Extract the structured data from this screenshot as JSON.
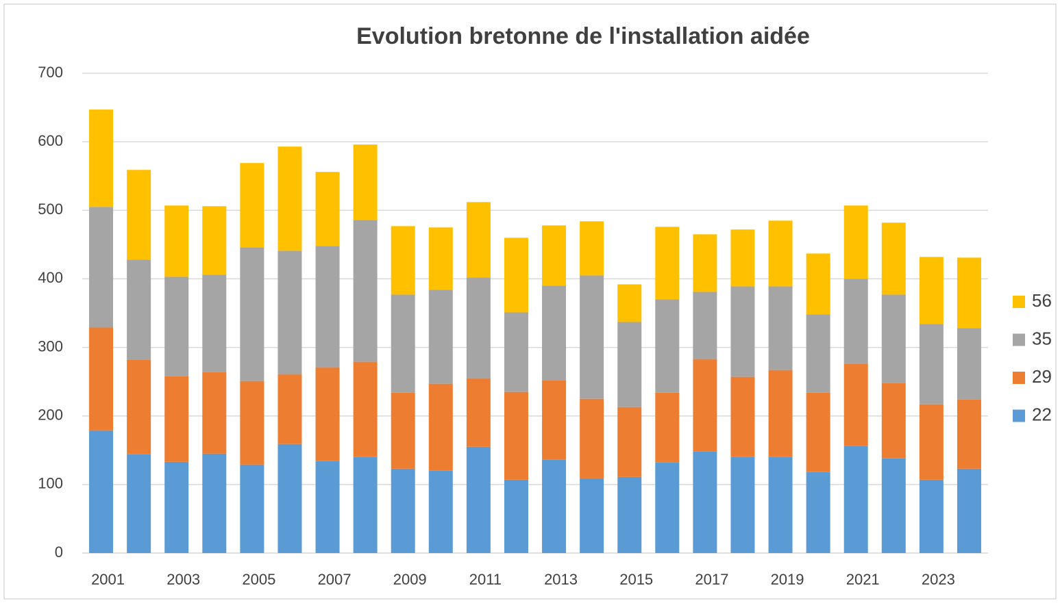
{
  "chart_data": {
    "type": "stacked_bar",
    "title": "Evolution bretonne de l'installation aidée",
    "categories": [
      "2001",
      null,
      "2003",
      null,
      "2005",
      null,
      "2007",
      null,
      "2009",
      null,
      "2011",
      null,
      "2013",
      null,
      "2015",
      null,
      "2017",
      null,
      "2019",
      null,
      "2021",
      null,
      "2023",
      null
    ],
    "series": [
      {
        "name": "22",
        "color": "#5b9bd5",
        "values": [
          179,
          144,
          133,
          145,
          129,
          159,
          134,
          140,
          123,
          120,
          155,
          107,
          136,
          109,
          111,
          132,
          148,
          140,
          140,
          118,
          156,
          138,
          107,
          123
        ]
      },
      {
        "name": "29",
        "color": "#ed7d31",
        "values": [
          150,
          138,
          125,
          119,
          122,
          102,
          137,
          139,
          111,
          127,
          100,
          128,
          116,
          116,
          102,
          102,
          135,
          117,
          127,
          116,
          120,
          110,
          110,
          101
        ]
      },
      {
        "name": "35",
        "color": "#a5a5a5",
        "values": [
          176,
          146,
          145,
          142,
          195,
          180,
          177,
          207,
          143,
          137,
          147,
          116,
          138,
          180,
          124,
          136,
          98,
          132,
          122,
          114,
          124,
          129,
          117,
          104
        ]
      },
      {
        "name": "56",
        "color": "#ffc000",
        "values": [
          142,
          131,
          104,
          100,
          123,
          152,
          108,
          110,
          100,
          91,
          110,
          109,
          88,
          79,
          55,
          106,
          84,
          83,
          96,
          89,
          107,
          105,
          98,
          103
        ]
      }
    ],
    "ylim": [
      0,
      700
    ],
    "yticks": [
      0,
      100,
      200,
      300,
      400,
      500,
      600,
      700
    ],
    "grid": true,
    "legend": "right"
  }
}
